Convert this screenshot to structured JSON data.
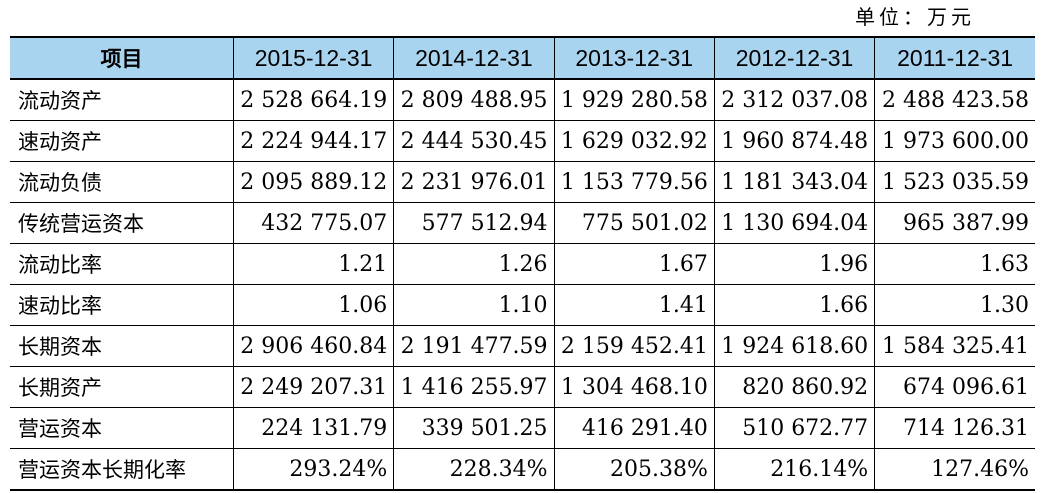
{
  "unit_note": "单位：万元",
  "table": {
    "headers": [
      "项目",
      "2015-12-31",
      "2014-12-31",
      "2013-12-31",
      "2012-12-31",
      "2011-12-31"
    ],
    "rows": [
      {
        "label": "流动资产",
        "values": [
          "2 528 664.19",
          "2 809 488.95",
          "1 929 280.58",
          "2 312 037.08",
          "2 488 423.58"
        ]
      },
      {
        "label": "速动资产",
        "values": [
          "2 224 944.17",
          "2 444 530.45",
          "1 629 032.92",
          "1 960 874.48",
          "1 973 600.00"
        ]
      },
      {
        "label": "流动负债",
        "values": [
          "2 095 889.12",
          "2 231 976.01",
          "1 153 779.56",
          "1 181 343.04",
          "1 523 035.59"
        ]
      },
      {
        "label": "传统营运资本",
        "values": [
          "432 775.07",
          "577 512.94",
          "775 501.02",
          "1 130 694.04",
          "965 387.99"
        ]
      },
      {
        "label": "流动比率",
        "values": [
          "1.21",
          "1.26",
          "1.67",
          "1.96",
          "1.63"
        ]
      },
      {
        "label": "速动比率",
        "values": [
          "1.06",
          "1.10",
          "1.41",
          "1.66",
          "1.30"
        ]
      },
      {
        "label": "长期资本",
        "values": [
          "2 906 460.84",
          "2 191 477.59",
          "2 159 452.41",
          "1 924 618.60",
          "1 584 325.41"
        ]
      },
      {
        "label": "长期资产",
        "values": [
          "2 249 207.31",
          "1 416 255.97",
          "1 304 468.10",
          "820 860.92",
          "674 096.61"
        ]
      },
      {
        "label": "营运资本",
        "values": [
          "224 131.79",
          "339 501.25",
          "416 291.40",
          "510 672.77",
          "714 126.31"
        ]
      },
      {
        "label": "营运资本长期化率",
        "values": [
          "293.24%",
          "228.34%",
          "205.38%",
          "216.14%",
          "127.46%"
        ]
      }
    ]
  },
  "colors": {
    "header_bg": "#a9d4ef",
    "border": "#000000"
  }
}
